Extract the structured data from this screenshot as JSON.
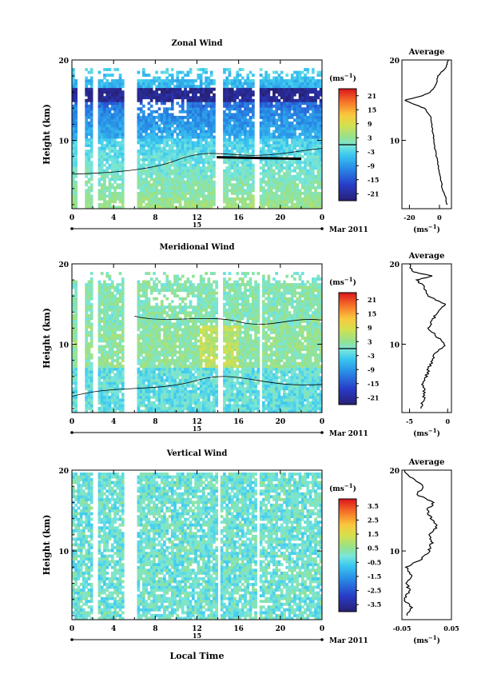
{
  "figure": {
    "xlabel": "Local Time",
    "date_label": "Mar 2011",
    "day_label": "15",
    "xticks": [
      "0",
      "4",
      "8",
      "12",
      "16",
      "20",
      "0"
    ]
  },
  "chart_data": [
    {
      "type": "heatmap",
      "title": "Zonal Wind",
      "ylabel": "Height (km)",
      "xlim": [
        0,
        24
      ],
      "ylim": [
        1.5,
        20
      ],
      "yticks": [
        "20",
        "10"
      ],
      "colorbar": {
        "unit": "(ms",
        "unit_sup": "−1",
        "unit_close": ")",
        "ticks": [
          "21",
          "15",
          "9",
          "3",
          "-3",
          "-9",
          "-15",
          "-21"
        ],
        "range": [
          -24,
          24
        ],
        "zero_line": 0
      },
      "profile": {
        "title": "Average",
        "xticks": [
          "-20",
          "0"
        ],
        "xlim": [
          -25,
          8
        ],
        "xlabel": "(ms",
        "xlabel_sup": "−1",
        "xlabel_close": ")",
        "yticks": [
          "20",
          "10"
        ],
        "heights": [
          2,
          3,
          4,
          5,
          6,
          7,
          8,
          9,
          10,
          11,
          12,
          13,
          14,
          14.5,
          15,
          15.5,
          16,
          17,
          18,
          19,
          20
        ],
        "values": [
          5,
          4,
          2,
          1,
          0,
          -1,
          -2,
          -3,
          -3.5,
          -4.5,
          -5,
          -6,
          -10,
          -17,
          -23,
          -12,
          -6,
          -2,
          -1,
          4,
          6
        ]
      }
    },
    {
      "type": "heatmap",
      "title": "Meridional Wind",
      "ylabel": "Height (km)",
      "xlim": [
        0,
        24
      ],
      "ylim": [
        1.5,
        20
      ],
      "yticks": [
        "20",
        "10"
      ],
      "colorbar": {
        "unit": "(ms",
        "unit_sup": "−1",
        "unit_close": ")",
        "ticks": [
          "21",
          "15",
          "9",
          "3",
          "-3",
          "-9",
          "-15",
          "-21"
        ],
        "range": [
          -24,
          24
        ],
        "zero_line": 0
      },
      "profile": {
        "title": "Average",
        "xticks": [
          "-5",
          "0"
        ],
        "xlim": [
          -6,
          0.5
        ],
        "xlabel": "(ms",
        "xlabel_sup": "−1",
        "xlabel_close": ")",
        "yticks": [
          "20",
          "10"
        ],
        "heights": [
          2,
          3,
          4,
          5,
          6,
          7,
          8,
          9,
          10,
          11,
          12,
          13,
          14,
          15,
          16,
          17,
          18,
          18.5,
          19,
          20
        ],
        "values": [
          -3.5,
          -3.2,
          -3,
          -3.3,
          -2.8,
          -2.5,
          -2,
          -1.5,
          -0.3,
          -1.5,
          -2.5,
          -2,
          -1.3,
          -0.4,
          -2.5,
          -3,
          -4,
          -2,
          -4.5,
          -5
        ]
      }
    },
    {
      "type": "heatmap",
      "title": "Vertical Wind",
      "ylabel": "Height (km)",
      "xlim": [
        0,
        24
      ],
      "ylim": [
        1.5,
        20
      ],
      "yticks": [
        "20",
        "10"
      ],
      "colorbar": {
        "unit": "(ms",
        "unit_sup": "−1",
        "unit_close": ")",
        "ticks": [
          "3.5",
          "2.5",
          "1.5",
          "0.5",
          "-0.5",
          "-1.5",
          "-2.5",
          "-3.5"
        ],
        "range": [
          -4,
          4
        ],
        "zero_line": null
      },
      "profile": {
        "title": "Average",
        "xticks": [
          "-0.05",
          "0.05"
        ],
        "xlim": [
          -0.05,
          0.05
        ],
        "xlabel": "(ms",
        "xlabel_sup": "−1",
        "xlabel_close": ")",
        "yticks": [
          "20",
          "10"
        ],
        "heights": [
          2,
          3,
          4,
          5,
          6,
          7,
          8,
          9,
          10,
          11,
          12,
          13,
          14,
          15,
          16,
          17,
          18,
          19,
          20
        ],
        "values": [
          -0.04,
          -0.03,
          -0.045,
          -0.035,
          -0.04,
          -0.03,
          -0.04,
          -0.01,
          0.005,
          0.01,
          0.005,
          0.02,
          0.01,
          0.0,
          0.015,
          -0.02,
          -0.005,
          -0.03,
          -0.045
        ]
      }
    }
  ]
}
